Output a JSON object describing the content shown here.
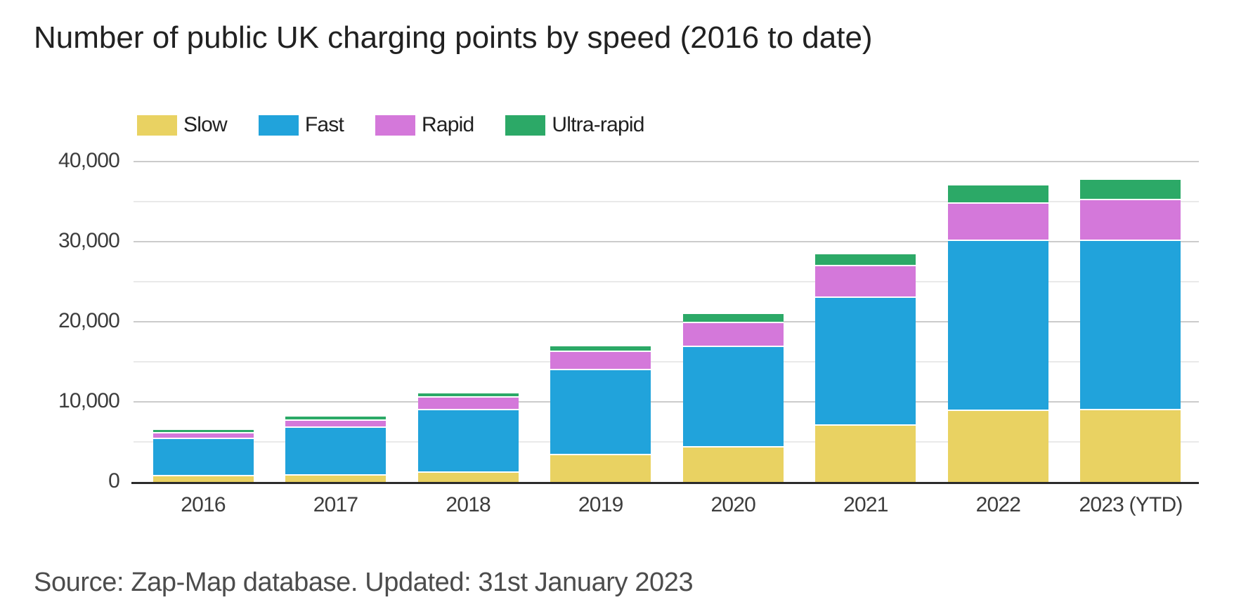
{
  "title": "Number of public UK charging points by speed (2016 to date)",
  "source_note": "Source: Zap-Map database. Updated: 31st January 2023",
  "chart_data": {
    "type": "bar",
    "stacked": true,
    "title": "Number of public UK charging points by speed (2016 to date)",
    "xlabel": "",
    "ylabel": "",
    "categories": [
      "2016",
      "2017",
      "2018",
      "2019",
      "2020",
      "2021",
      "2022",
      "2023 (YTD)"
    ],
    "series": [
      {
        "name": "Slow",
        "color": "#e9d262",
        "values": [
          900,
          950,
          1300,
          3500,
          4500,
          7200,
          9000,
          9150
        ]
      },
      {
        "name": "Fast",
        "color": "#21a3db",
        "values": [
          4650,
          6000,
          7850,
          10600,
          12500,
          16000,
          21300,
          21150
        ]
      },
      {
        "name": "Rapid",
        "color": "#d478da",
        "values": [
          700,
          900,
          1550,
          2300,
          3000,
          3900,
          4600,
          5050
        ]
      },
      {
        "name": "Ultra-rapid",
        "color": "#2ca967",
        "values": [
          200,
          280,
          330,
          550,
          950,
          1300,
          2100,
          2350
        ]
      }
    ],
    "ylim": [
      0,
      40000
    ],
    "y_ticks": [
      0,
      10000,
      20000,
      30000,
      40000
    ],
    "y_tick_labels": [
      "0",
      "10,000",
      "20,000",
      "30,000",
      "40,000"
    ],
    "y_minor_ticks": [
      5000,
      15000,
      25000,
      35000
    ],
    "grid": "horizontal",
    "legend_position": "top-left"
  }
}
